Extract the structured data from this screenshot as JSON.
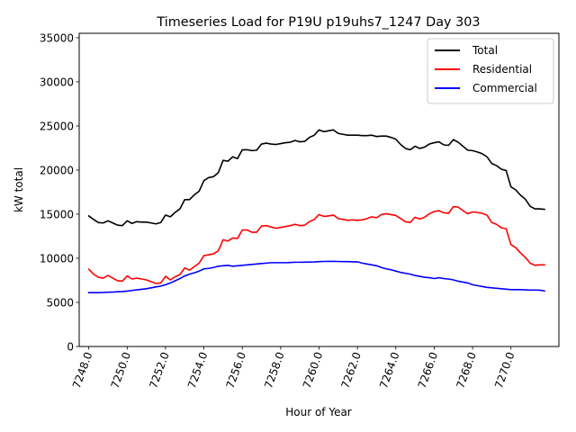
{
  "chart_data": {
    "type": "line",
    "title": "Timeseries Load for P19U p19uhs7_1247  Day 303",
    "xlabel": "Hour of Year",
    "ylabel": "kW total",
    "xlim": [
      7247.5,
      7272.5
    ],
    "ylim": [
      0,
      35500
    ],
    "xticks": [
      7248,
      7250,
      7252,
      7254,
      7256,
      7258,
      7260,
      7262,
      7264,
      7266,
      7268,
      7270
    ],
    "xtick_labels": [
      "7248.0",
      "7250.0",
      "7252.0",
      "7254.0",
      "7256.0",
      "7258.0",
      "7260.0",
      "7262.0",
      "7264.0",
      "7266.0",
      "7268.0",
      "7270.0"
    ],
    "yticks": [
      0,
      5000,
      10000,
      15000,
      20000,
      25000,
      30000,
      35000
    ],
    "ytick_labels": [
      "0",
      "5000",
      "10000",
      "15000",
      "20000",
      "25000",
      "30000",
      "35000"
    ],
    "legend_position": "top-right",
    "x": [
      7248.0,
      7248.25,
      7248.5,
      7248.75,
      7249.0,
      7249.25,
      7249.5,
      7249.75,
      7250.0,
      7250.25,
      7250.5,
      7250.75,
      7251.0,
      7251.25,
      7251.5,
      7251.75,
      7252.0,
      7252.25,
      7252.5,
      7252.75,
      7253.0,
      7253.25,
      7253.5,
      7253.75,
      7254.0,
      7254.25,
      7254.5,
      7254.75,
      7255.0,
      7255.25,
      7255.5,
      7255.75,
      7256.0,
      7256.25,
      7256.5,
      7256.75,
      7257.0,
      7257.25,
      7257.5,
      7257.75,
      7258.0,
      7258.25,
      7258.5,
      7258.75,
      7259.0,
      7259.25,
      7259.5,
      7259.75,
      7260.0,
      7260.25,
      7260.5,
      7260.75,
      7261.0,
      7261.25,
      7261.5,
      7261.75,
      7262.0,
      7262.25,
      7262.5,
      7262.75,
      7263.0,
      7263.25,
      7263.5,
      7263.75,
      7264.0,
      7264.25,
      7264.5,
      7264.75,
      7265.0,
      7265.25,
      7265.5,
      7265.75,
      7266.0,
      7266.25,
      7266.5,
      7266.75,
      7267.0,
      7267.25,
      7267.5,
      7267.75,
      7268.0,
      7268.25,
      7268.5,
      7268.75,
      7269.0,
      7269.25,
      7269.5,
      7269.75,
      7270.0,
      7270.25,
      7270.5,
      7270.75,
      7271.0,
      7271.25,
      7271.5,
      7271.75
    ],
    "series": [
      {
        "name": "Total",
        "color": "#000000",
        "values": [
          14800,
          14400,
          14050,
          14000,
          14250,
          14000,
          13750,
          13700,
          14250,
          13950,
          14150,
          14100,
          14100,
          14000,
          13900,
          14050,
          14900,
          14700,
          15200,
          15600,
          16650,
          16650,
          17200,
          17600,
          18800,
          19150,
          19250,
          19700,
          21100,
          21000,
          21500,
          21300,
          22300,
          22300,
          22200,
          22250,
          22950,
          23050,
          22950,
          22900,
          23000,
          23100,
          23150,
          23350,
          23200,
          23250,
          23700,
          23950,
          24550,
          24350,
          24450,
          24550,
          24150,
          24050,
          23950,
          23950,
          23950,
          23900,
          23900,
          23950,
          23800,
          23850,
          23850,
          23700,
          23500,
          22900,
          22450,
          22300,
          22700,
          22450,
          22600,
          22950,
          23100,
          23200,
          22850,
          22800,
          23450,
          23150,
          22700,
          22250,
          22200,
          22050,
          21850,
          21500,
          20750,
          20500,
          20100,
          19950,
          18100,
          17750,
          17150,
          16700,
          15900,
          15600,
          15600,
          15550
        ]
      },
      {
        "name": "Residential",
        "color": "#ff0000",
        "values": [
          8750,
          8200,
          7850,
          7750,
          8050,
          7750,
          7450,
          7400,
          8000,
          7650,
          7750,
          7650,
          7550,
          7350,
          7150,
          7200,
          7950,
          7550,
          7900,
          8150,
          8900,
          8650,
          9050,
          9450,
          10300,
          10400,
          10500,
          10850,
          12100,
          11950,
          12300,
          12250,
          13200,
          13200,
          12950,
          12950,
          13650,
          13700,
          13550,
          13400,
          13500,
          13600,
          13700,
          13850,
          13700,
          13750,
          14150,
          14400,
          14950,
          14750,
          14800,
          14900,
          14500,
          14400,
          14300,
          14350,
          14300,
          14350,
          14500,
          14700,
          14600,
          14950,
          15050,
          14950,
          14850,
          14500,
          14150,
          14050,
          14650,
          14450,
          14650,
          15050,
          15300,
          15400,
          15150,
          15100,
          15850,
          15800,
          15400,
          15050,
          15250,
          15200,
          15100,
          14900,
          14050,
          13850,
          13450,
          13350,
          11550,
          11200,
          10600,
          10100,
          9450,
          9200,
          9250,
          9250
        ]
      },
      {
        "name": "Commercial",
        "color": "#0000ff",
        "values": [
          6100,
          6100,
          6100,
          6120,
          6150,
          6170,
          6200,
          6230,
          6280,
          6350,
          6420,
          6480,
          6550,
          6650,
          6750,
          6850,
          7000,
          7200,
          7450,
          7700,
          8000,
          8200,
          8350,
          8550,
          8800,
          8850,
          8950,
          9100,
          9150,
          9200,
          9100,
          9150,
          9200,
          9250,
          9300,
          9350,
          9400,
          9450,
          9500,
          9500,
          9500,
          9500,
          9520,
          9550,
          9550,
          9560,
          9570,
          9580,
          9620,
          9640,
          9650,
          9650,
          9640,
          9620,
          9620,
          9600,
          9600,
          9450,
          9350,
          9250,
          9150,
          8950,
          8800,
          8700,
          8550,
          8400,
          8300,
          8200,
          8050,
          7950,
          7850,
          7800,
          7700,
          7800,
          7700,
          7650,
          7550,
          7400,
          7300,
          7200,
          7000,
          6900,
          6800,
          6700,
          6650,
          6600,
          6550,
          6500,
          6450,
          6450,
          6450,
          6420,
          6400,
          6400,
          6380,
          6300
        ]
      }
    ]
  }
}
